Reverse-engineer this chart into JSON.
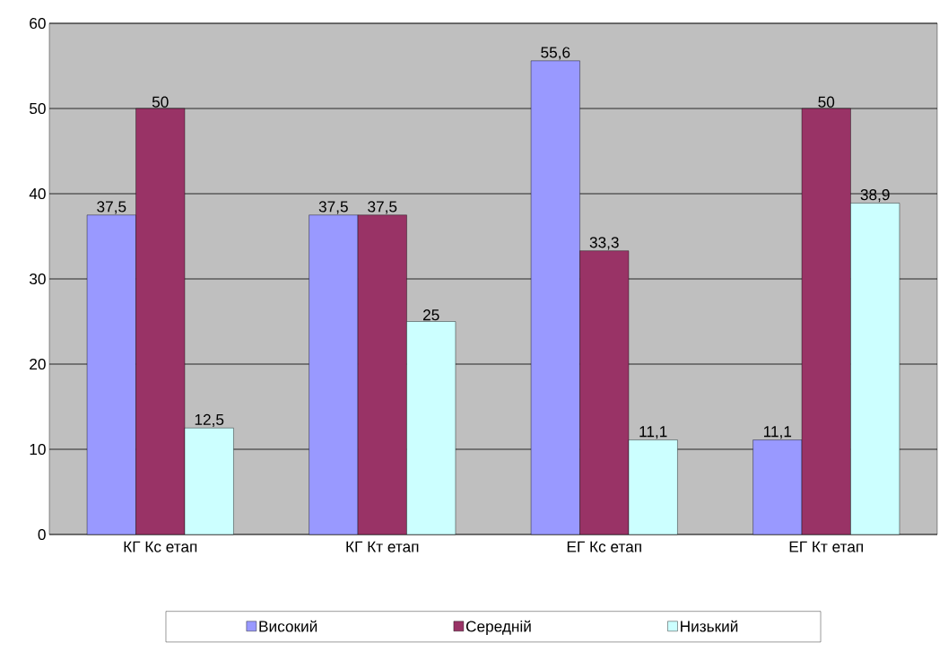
{
  "chart_data": {
    "type": "bar",
    "categories": [
      "КГ Кс етап",
      "КГ Кт етап",
      "ЕГ Кс етап",
      "ЕГ Кт етап"
    ],
    "series": [
      {
        "name": "Високий",
        "color": "#9999ff",
        "values": [
          37.5,
          37.5,
          55.6,
          11.1
        ],
        "value_labels": [
          "37,5",
          "37,5",
          "55,6",
          "11,1"
        ]
      },
      {
        "name": "Середній",
        "color": "#993366",
        "values": [
          50,
          37.5,
          33.3,
          50
        ],
        "value_labels": [
          "50",
          "37,5",
          "33,3",
          "50"
        ]
      },
      {
        "name": "Низький",
        "color": "#ccffff",
        "values": [
          12.5,
          25,
          11.1,
          38.9
        ],
        "value_labels": [
          "12,5",
          "25",
          "11,1",
          "38,9"
        ]
      }
    ],
    "ylim": [
      0,
      60
    ],
    "yticks": [
      0,
      10,
      20,
      30,
      40,
      50,
      60
    ],
    "grid": "y",
    "legend": "bottom"
  }
}
